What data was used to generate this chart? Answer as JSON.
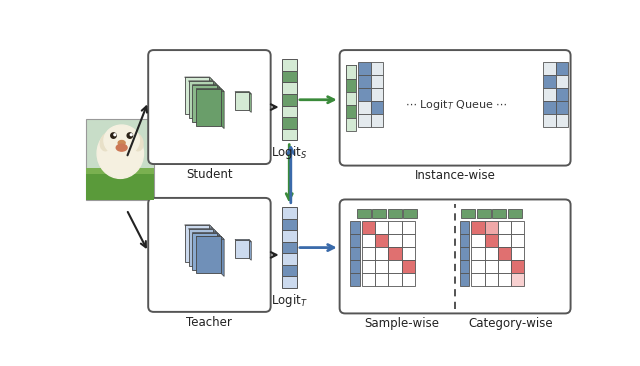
{
  "fig_width": 6.4,
  "fig_height": 3.66,
  "dpi": 100,
  "bg_color": "#ffffff",
  "green_dark": "#6a9e6a",
  "green_mid": "#8ab88a",
  "green_light": "#b2d4b2",
  "green_vlight": "#d4ead4",
  "blue_dark": "#7090b8",
  "blue_mid": "#8aaad0",
  "blue_light": "#aac0dc",
  "blue_vlight": "#ccdaee",
  "red_sat": "#e07070",
  "red_light": "#f0a8a8",
  "red_vlight": "#f8d0d0",
  "gray_mid": "#b8c4cc",
  "gray_light": "#d0d8e0",
  "gray_vlight": "#e4eaee",
  "white": "#ffffff",
  "box_ec": "#555555",
  "arrow_green": "#3a8a3a",
  "arrow_blue": "#3a6aaa",
  "arrow_black": "#222222",
  "text_color": "#222222",
  "logit_queue_text": "--- Logit",
  "student_label": "Student",
  "teacher_label": "Teacher",
  "logits_label": "Logit$_S$",
  "logitt_label": "Logit$_T$",
  "instwise_label": "Instance-wise",
  "samplewise_label": "Sample-wise",
  "catwise_label": "Category-wise"
}
